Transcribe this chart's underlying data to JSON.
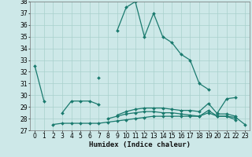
{
  "series": [
    {
      "x": [
        0,
        1,
        2,
        3,
        4,
        5,
        6,
        7,
        8,
        9,
        10,
        11,
        12,
        13,
        14,
        15,
        16,
        17,
        18,
        19,
        20,
        21,
        22,
        23
      ],
      "y": [
        32.5,
        29.5,
        null,
        null,
        null,
        null,
        null,
        31.5,
        null,
        35.5,
        37.5,
        38.0,
        35.0,
        37.0,
        35.0,
        34.5,
        33.5,
        33.0,
        31.0,
        30.5,
        null,
        null,
        null,
        null
      ]
    },
    {
      "x": [
        0,
        1,
        2,
        3,
        4,
        5,
        6,
        7,
        8,
        9,
        10,
        11,
        12,
        13,
        14,
        15,
        16,
        17,
        18,
        19,
        20,
        21,
        22,
        23
      ],
      "y": [
        null,
        null,
        null,
        28.5,
        29.5,
        29.5,
        29.5,
        29.2,
        null,
        null,
        null,
        null,
        null,
        null,
        null,
        null,
        null,
        null,
        null,
        null,
        28.5,
        29.7,
        29.8,
        null
      ]
    },
    {
      "x": [
        0,
        1,
        2,
        3,
        4,
        5,
        6,
        7,
        8,
        9,
        10,
        11,
        12,
        13,
        14,
        15,
        16,
        17,
        18,
        19,
        20,
        21,
        22,
        23
      ],
      "y": [
        null,
        null,
        27.5,
        27.6,
        27.6,
        27.6,
        27.6,
        27.6,
        27.7,
        27.8,
        27.9,
        28.0,
        28.1,
        28.2,
        28.2,
        28.2,
        28.2,
        28.2,
        28.2,
        28.5,
        28.2,
        28.2,
        28.1,
        27.5
      ]
    },
    {
      "x": [
        0,
        1,
        2,
        3,
        4,
        5,
        6,
        7,
        8,
        9,
        10,
        11,
        12,
        13,
        14,
        15,
        16,
        17,
        18,
        19,
        20,
        21,
        22,
        23
      ],
      "y": [
        null,
        null,
        null,
        null,
        null,
        null,
        null,
        null,
        28.0,
        28.2,
        28.4,
        28.5,
        28.6,
        28.6,
        28.5,
        28.5,
        28.4,
        28.3,
        28.2,
        28.7,
        28.2,
        28.2,
        27.9,
        null
      ]
    },
    {
      "x": [
        0,
        1,
        2,
        3,
        4,
        5,
        6,
        7,
        8,
        9,
        10,
        11,
        12,
        13,
        14,
        15,
        16,
        17,
        18,
        19,
        20,
        21,
        22,
        23
      ],
      "y": [
        null,
        null,
        null,
        null,
        null,
        null,
        null,
        null,
        null,
        28.3,
        28.6,
        28.8,
        28.9,
        28.9,
        28.9,
        28.8,
        28.7,
        28.7,
        28.6,
        29.3,
        28.4,
        28.4,
        28.2,
        null
      ]
    }
  ],
  "line_color": "#1a7a6e",
  "bg_color": "#cde8e8",
  "grid_color": "#a8d0cc",
  "xlabel": "Humidex (Indice chaleur)",
  "ylim": [
    27,
    38
  ],
  "xlim": [
    -0.5,
    23.5
  ],
  "yticks": [
    27,
    28,
    29,
    30,
    31,
    32,
    33,
    34,
    35,
    36,
    37,
    38
  ],
  "xticks": [
    0,
    1,
    2,
    3,
    4,
    5,
    6,
    7,
    8,
    9,
    10,
    11,
    12,
    13,
    14,
    15,
    16,
    17,
    18,
    19,
    20,
    21,
    22,
    23
  ],
  "marker": "D",
  "markersize": 2.0,
  "linewidth": 0.9,
  "xlabel_fontsize": 6.5,
  "tick_fontsize": 5.5
}
